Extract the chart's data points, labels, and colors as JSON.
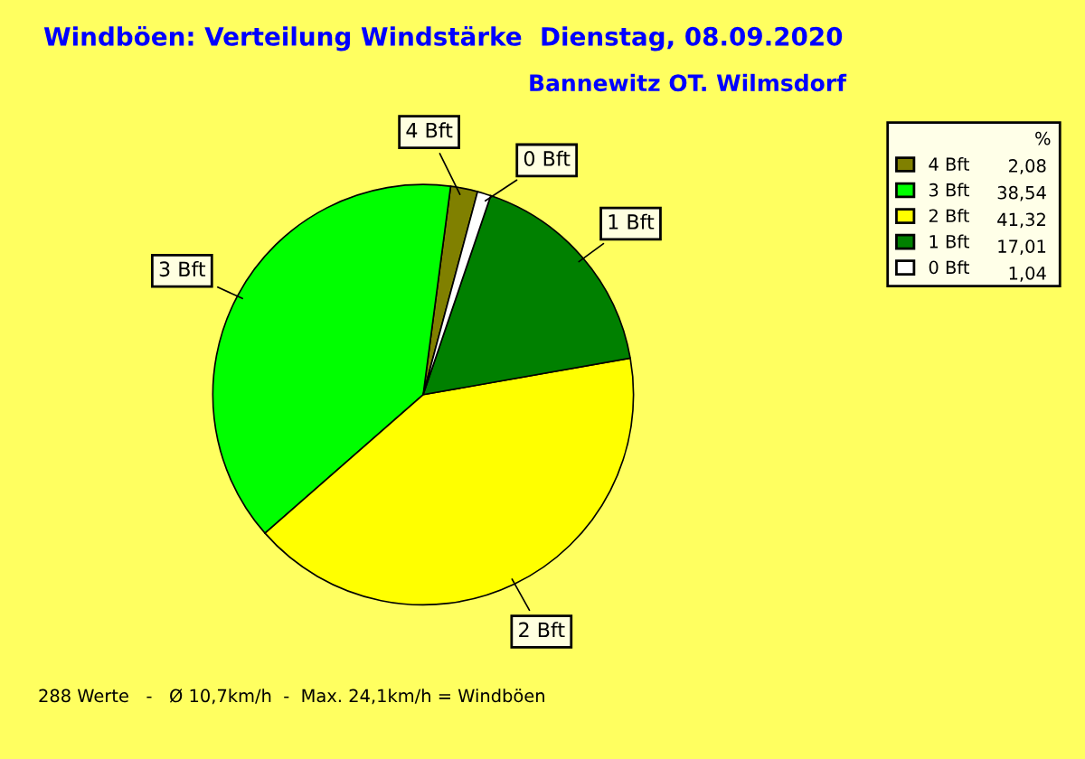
{
  "chart_data": {
    "type": "pie",
    "title": "Windböen: Verteilung Windstärke  Dienstag, 08.09.2020",
    "subtitle": "Bannewitz OT. Wilmsdorf",
    "legend_title": "%",
    "categories": [
      "4 Bft",
      "3 Bft",
      "2 Bft",
      "1 Bft",
      "0 Bft"
    ],
    "values": [
      2.08,
      38.54,
      41.32,
      17.01,
      1.04
    ],
    "value_labels": [
      "2,08",
      "38,54",
      "41,32",
      "17,01",
      "1,04"
    ],
    "colors": [
      "#808000",
      "#00ff00",
      "#ffff00",
      "#008000",
      "#ffffff"
    ],
    "legend": "top right",
    "annotations": [
      "288 Werte   -   Ø 10,7km/h  -  Max. 24,1km/h = Windböen"
    ]
  }
}
